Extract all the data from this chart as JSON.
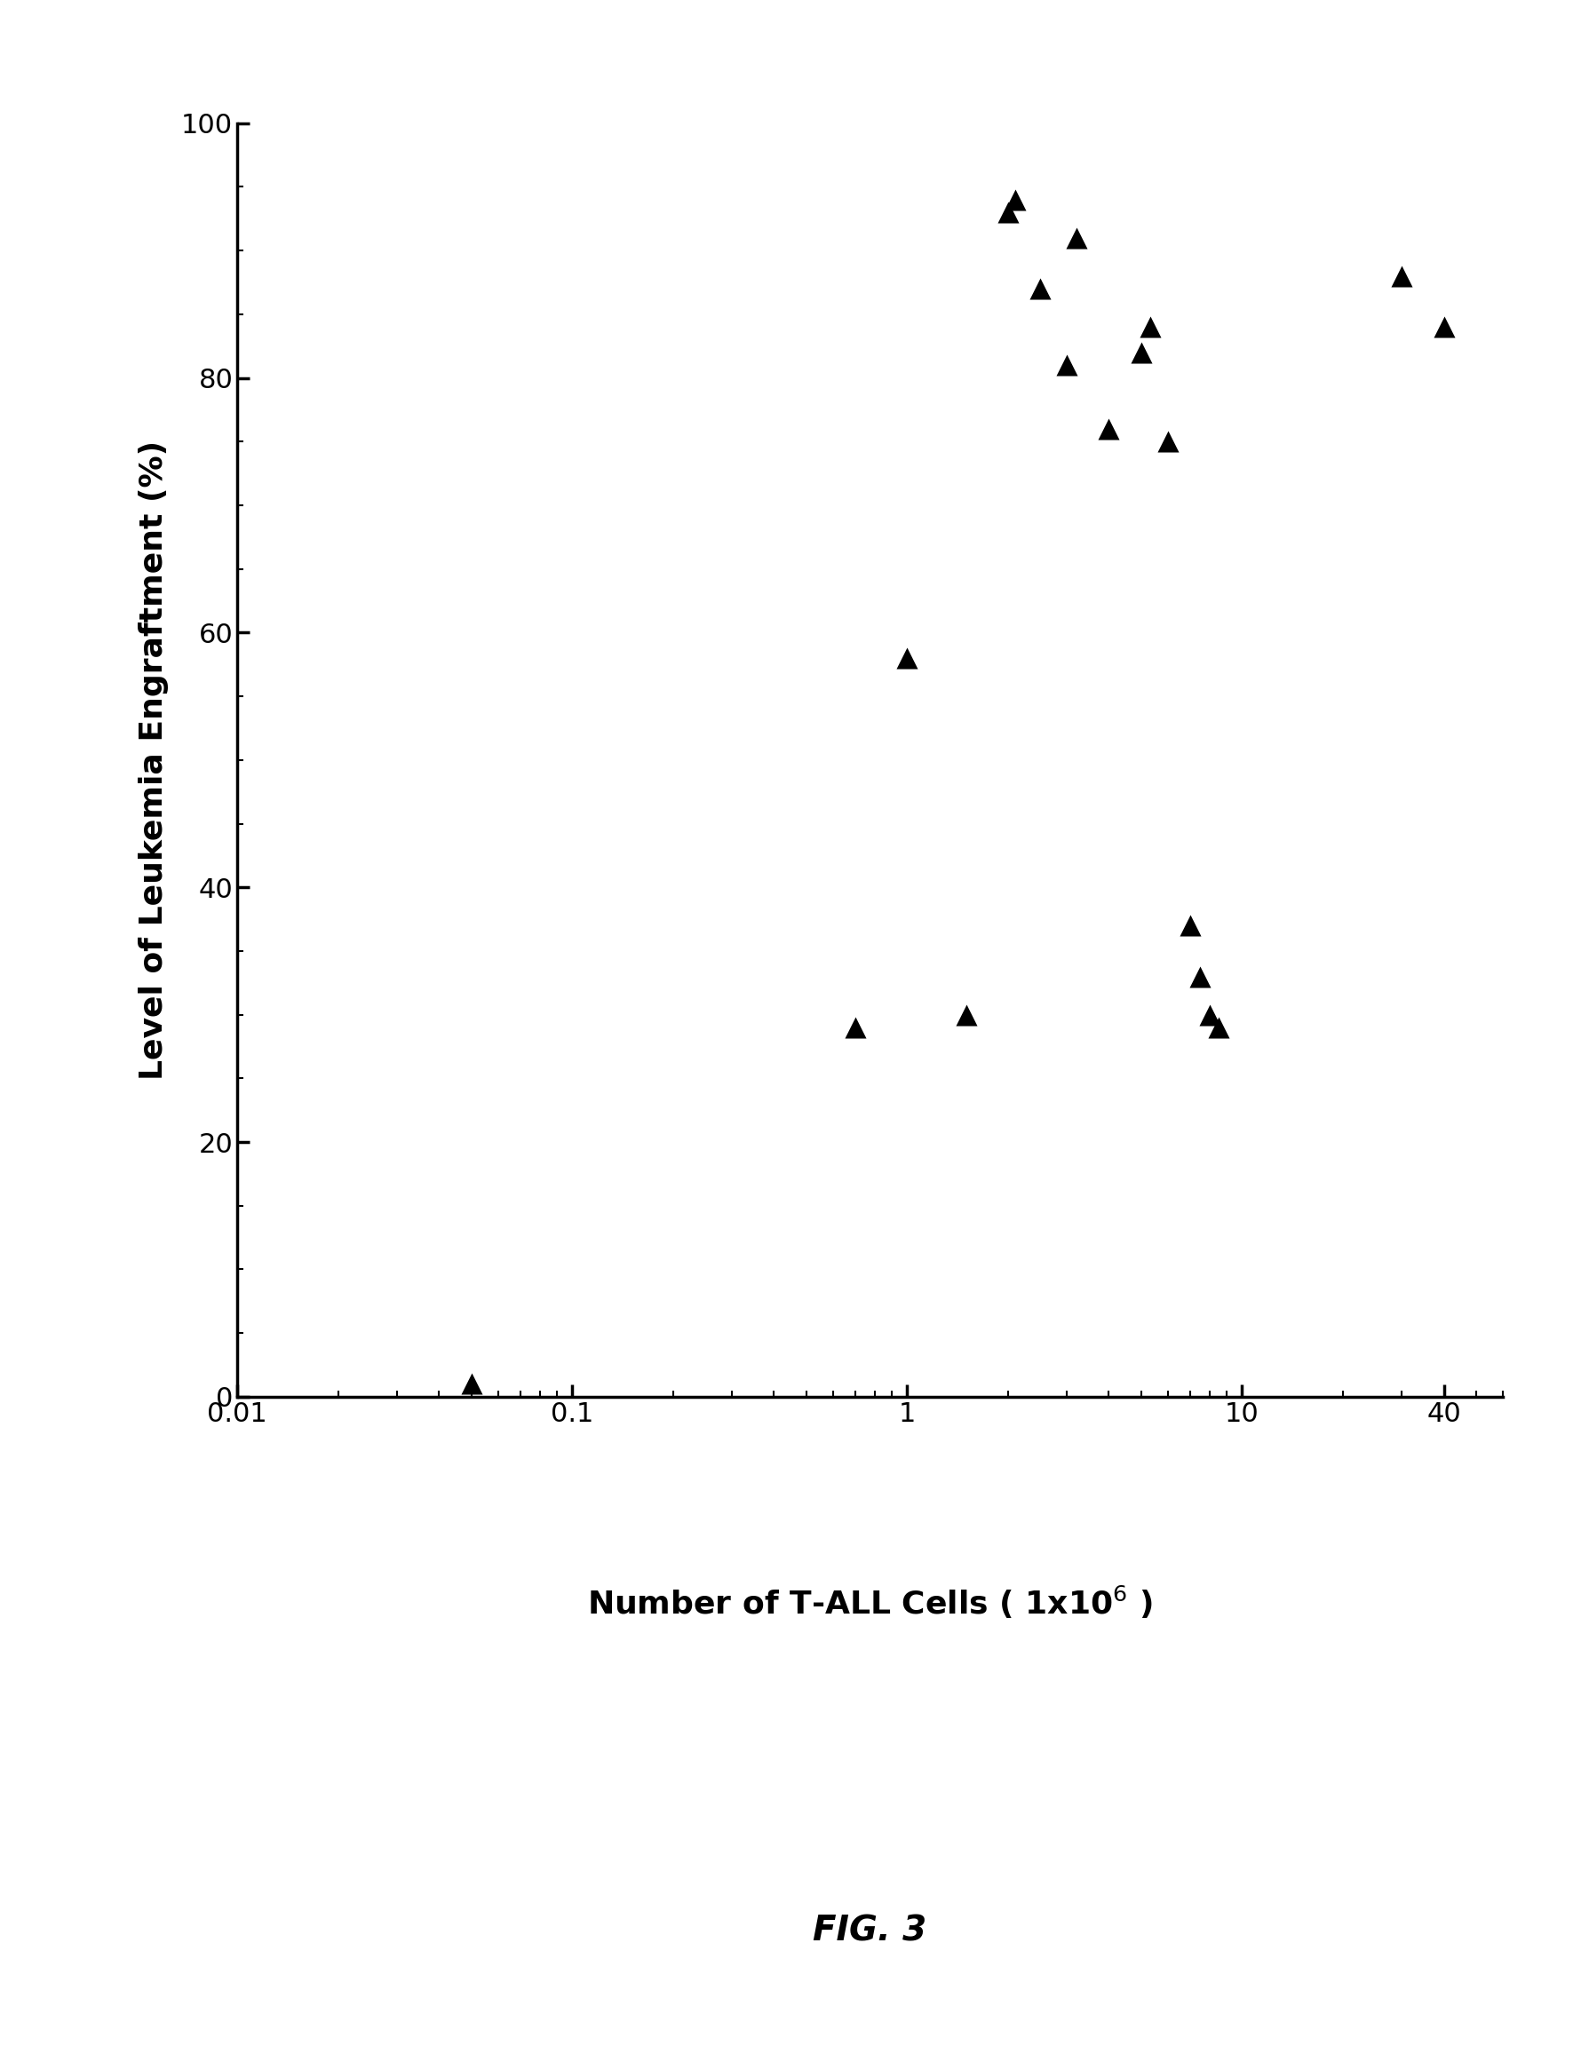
{
  "x_pts": [
    0.05,
    0.7,
    1.0,
    1.5,
    2.0,
    2.1,
    2.5,
    3.0,
    3.2,
    4.0,
    5.0,
    5.3,
    6.0,
    7.0,
    7.5,
    8.0,
    8.5,
    30.0,
    40.0
  ],
  "y_pts": [
    1,
    29,
    58,
    30,
    93,
    94,
    87,
    81,
    91,
    76,
    82,
    84,
    75,
    37,
    33,
    30,
    29,
    88,
    84
  ],
  "xlabel": "Number of T-ALL Cells ( 1x10$^6$ )",
  "ylabel": "Level of Leukemia Engraftment (%)",
  "figure_label": "FIG. 3",
  "xlim_left": 0.01,
  "xlim_right": 60,
  "ylim": [
    0,
    100
  ],
  "yticks": [
    0,
    20,
    40,
    60,
    80,
    100
  ],
  "xtick_positions": [
    0.01,
    0.1,
    1,
    10,
    40
  ],
  "xtick_labels": [
    "0.01",
    "0.1",
    "1",
    "10",
    "40"
  ],
  "marker_color": "#000000",
  "background_color": "#ffffff",
  "marker_size": 300,
  "label_fontsize": 26,
  "tick_fontsize": 22,
  "fig_label_fontsize": 28
}
